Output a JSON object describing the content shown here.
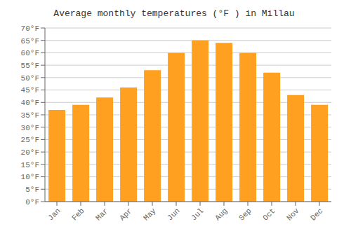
{
  "chart_data": {
    "type": "bar",
    "title": "Average monthly temperatures (°F ) in Millau",
    "categories": [
      "Jan",
      "Feb",
      "Mar",
      "Apr",
      "May",
      "Jun",
      "Jul",
      "Aug",
      "Sep",
      "Oct",
      "Nov",
      "Dec"
    ],
    "values": [
      37,
      39,
      42,
      46,
      53,
      60,
      65,
      64,
      60,
      52,
      43,
      39
    ],
    "color": "#FFA020",
    "ylim": [
      0,
      70
    ],
    "yticks": [
      {
        "value": 0,
        "label": "0°F"
      },
      {
        "value": 5,
        "label": "5°F"
      },
      {
        "value": 10,
        "label": "10°F"
      },
      {
        "value": 15,
        "label": "15°F"
      },
      {
        "value": 20,
        "label": "20°F"
      },
      {
        "value": 25,
        "label": "25°F"
      },
      {
        "value": 30,
        "label": "30°F"
      },
      {
        "value": 35,
        "label": "35°F"
      },
      {
        "value": 40,
        "label": "40°F"
      },
      {
        "value": 45,
        "label": "45°F"
      },
      {
        "value": 50,
        "label": "50°F"
      },
      {
        "value": 55,
        "label": "55°F"
      },
      {
        "value": 60,
        "label": "60°F"
      },
      {
        "value": 65,
        "label": "65°F"
      },
      {
        "value": 70,
        "label": "70°F"
      }
    ],
    "grid": true
  }
}
